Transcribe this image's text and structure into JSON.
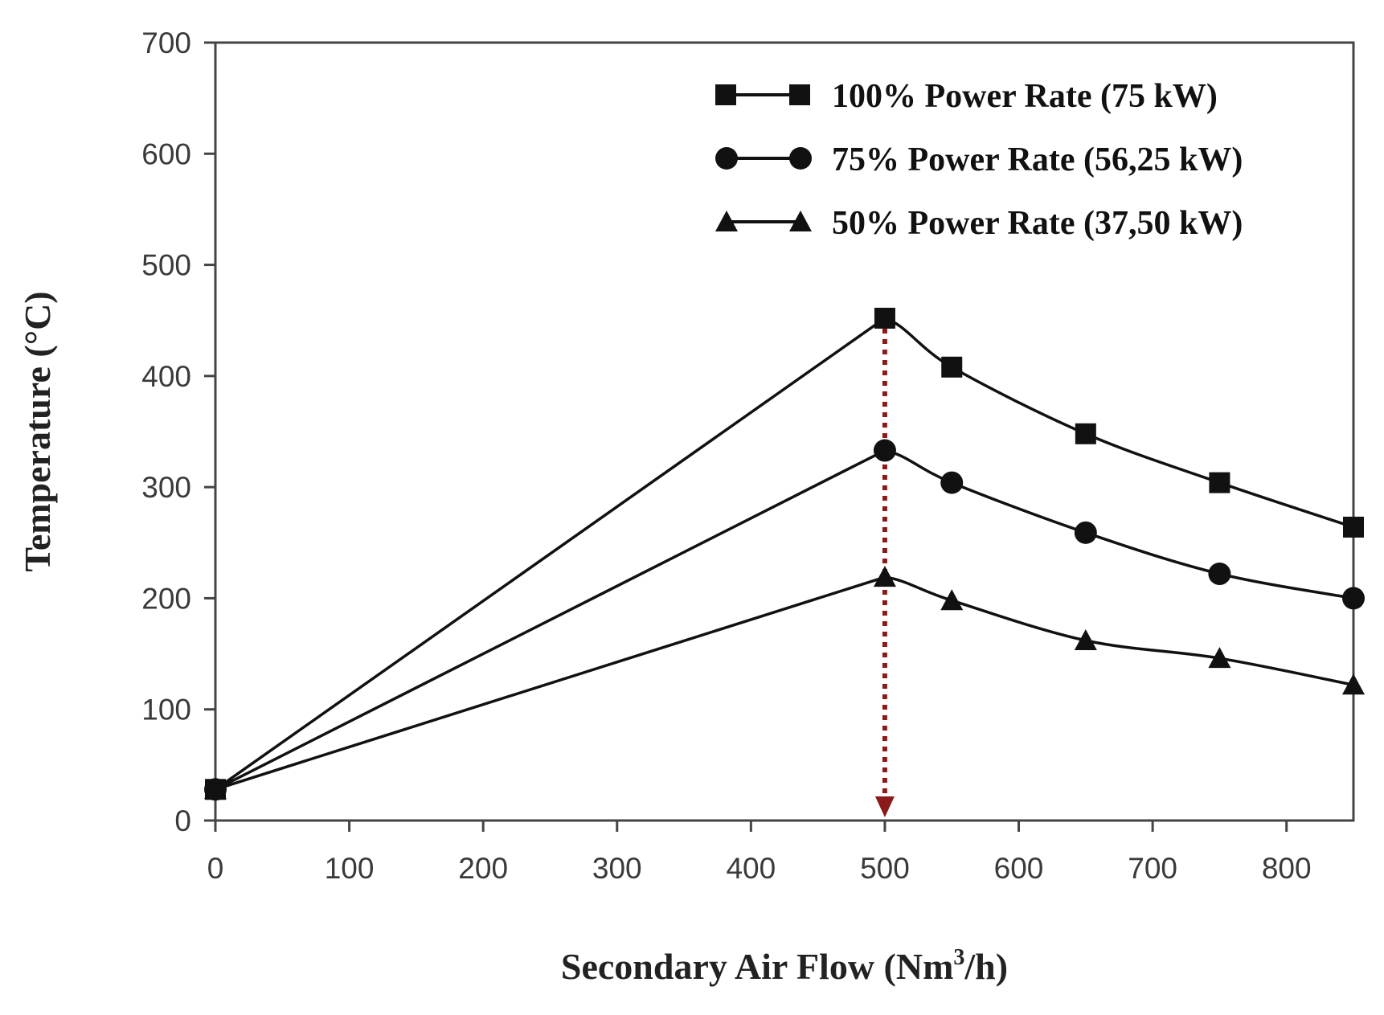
{
  "chart_data": {
    "type": "line",
    "title": "",
    "xlabel": "Secondary Air Flow (Nm³/h)",
    "xlabel_main": "Secondary Air Flow (Nm",
    "xlabel_sup": "3",
    "xlabel_tail": "/h)",
    "ylabel": "Temperature (°C)",
    "xlim": [
      0,
      850
    ],
    "ylim": [
      0,
      700
    ],
    "xticks": [
      0,
      100,
      200,
      300,
      400,
      500,
      600,
      700,
      800
    ],
    "yticks": [
      0,
      100,
      200,
      300,
      400,
      500,
      600,
      700
    ],
    "legend_position": "top-right",
    "series": [
      {
        "name": "100% Power Rate (75 kW)",
        "marker": "square",
        "x": [
          0,
          500,
          550,
          650,
          750,
          850
        ],
        "values": [
          28,
          452,
          408,
          348,
          304,
          264
        ]
      },
      {
        "name": "75% Power Rate (56,25 kW)",
        "marker": "circle",
        "x": [
          0,
          500,
          550,
          650,
          750,
          850
        ],
        "values": [
          28,
          333,
          304,
          259,
          222,
          200
        ]
      },
      {
        "name": "50% Power Rate (37,50 kW)",
        "marker": "triangle",
        "x": [
          0,
          500,
          550,
          650,
          750,
          850
        ],
        "values": [
          28,
          219,
          198,
          162,
          146,
          122
        ]
      }
    ],
    "annotations": [
      {
        "type": "dotted-arrow",
        "x": 500,
        "from_y": 452,
        "to_y": 0,
        "color": "#8b1a1a"
      }
    ],
    "colors": {
      "line": "#111111",
      "axis": "#444444",
      "annotation": "#8b1a1a"
    }
  }
}
